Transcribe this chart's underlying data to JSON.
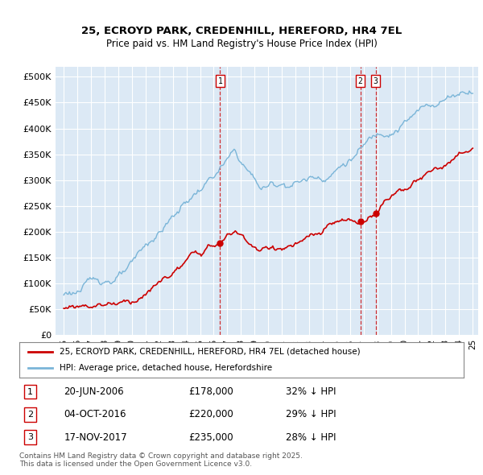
{
  "title_line1": "25, ECROYD PARK, CREDENHILL, HEREFORD, HR4 7EL",
  "title_line2": "Price paid vs. HM Land Registry's House Price Index (HPI)",
  "ylabel_ticks": [
    "£0",
    "£50K",
    "£100K",
    "£150K",
    "£200K",
    "£250K",
    "£300K",
    "£350K",
    "£400K",
    "£450K",
    "£500K"
  ],
  "ytick_values": [
    0,
    50000,
    100000,
    150000,
    200000,
    250000,
    300000,
    350000,
    400000,
    450000,
    500000
  ],
  "ylim": [
    0,
    520000
  ],
  "legend_line1": "25, ECROYD PARK, CREDENHILL, HEREFORD, HR4 7EL (detached house)",
  "legend_line2": "HPI: Average price, detached house, Herefordshire",
  "annotation1": {
    "num": "1",
    "date": "20-JUN-2006",
    "price": "£178,000",
    "pct": "32% ↓ HPI",
    "year": 2006.47
  },
  "annotation2": {
    "num": "2",
    "date": "04-OCT-2016",
    "price": "£220,000",
    "pct": "29% ↓ HPI",
    "year": 2016.75
  },
  "annotation3": {
    "num": "3",
    "date": "17-NOV-2017",
    "price": "£235,000",
    "pct": "28% ↓ HPI",
    "year": 2017.88
  },
  "footer": "Contains HM Land Registry data © Crown copyright and database right 2025.\nThis data is licensed under the Open Government Licence v3.0.",
  "hpi_color": "#7ab5d8",
  "price_color": "#cc0000",
  "bg_color": "#dce9f5",
  "grid_color": "#ffffff",
  "annotation_color": "#cc0000",
  "sale_prices": [
    178000,
    220000,
    235000
  ]
}
